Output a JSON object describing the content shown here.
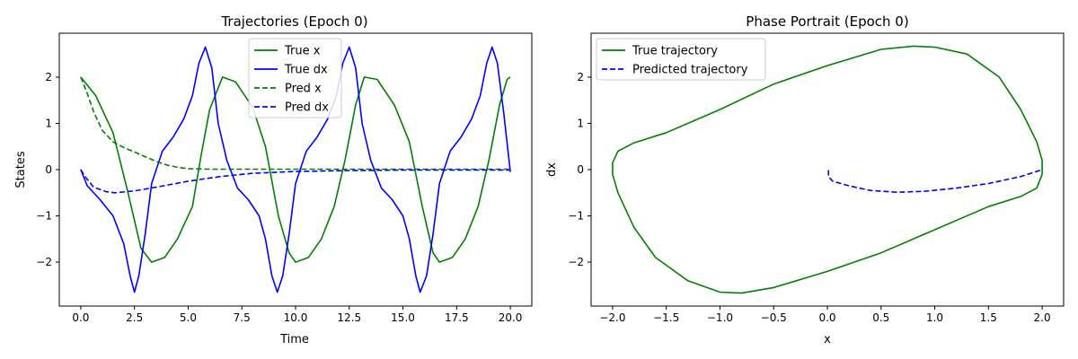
{
  "colors": {
    "true": "#008000",
    "pred": "#0000ff",
    "axis": "#000000",
    "legend_border": "#cccccc"
  },
  "chart_data": [
    {
      "type": "line",
      "title": "Trajectories (Epoch 0)",
      "xlabel": "Time",
      "ylabel": "States",
      "xlim": [
        -1.0,
        21.0
      ],
      "ylim": [
        -2.95,
        2.95
      ],
      "xticks": [
        0.0,
        2.5,
        5.0,
        7.5,
        10.0,
        12.5,
        15.0,
        17.5,
        20.0
      ],
      "xticklabels": [
        "0.0",
        "2.5",
        "5.0",
        "7.5",
        "10.0",
        "12.5",
        "15.0",
        "17.5",
        "20.0"
      ],
      "yticks": [
        -2,
        -1,
        0,
        1,
        2
      ],
      "yticklabels": [
        "−2",
        "−1",
        "0",
        "1",
        "2"
      ],
      "grid": false,
      "legend": "top-center",
      "series": [
        {
          "name": "True x",
          "style": "solid",
          "color_key": "true",
          "points": [
            [
              0,
              2.0
            ],
            [
              0.7,
              1.6
            ],
            [
              1.5,
              0.8
            ],
            [
              2.2,
              -0.5
            ],
            [
              2.8,
              -1.7
            ],
            [
              3.3,
              -2.0
            ],
            [
              3.9,
              -1.9
            ],
            [
              4.5,
              -1.5
            ],
            [
              5.2,
              -0.8
            ],
            [
              5.6,
              0.3
            ],
            [
              6.0,
              1.3
            ],
            [
              6.6,
              2.0
            ],
            [
              7.2,
              1.9
            ],
            [
              8.0,
              1.35
            ],
            [
              8.6,
              0.5
            ],
            [
              9.2,
              -1.0
            ],
            [
              9.7,
              -1.8
            ],
            [
              10.0,
              -2.0
            ],
            [
              10.6,
              -1.9
            ],
            [
              11.2,
              -1.5
            ],
            [
              11.8,
              -0.8
            ],
            [
              12.3,
              0.2
            ],
            [
              12.8,
              1.4
            ],
            [
              13.2,
              2.0
            ],
            [
              13.8,
              1.95
            ],
            [
              14.6,
              1.4
            ],
            [
              15.3,
              0.6
            ],
            [
              15.9,
              -0.8
            ],
            [
              16.4,
              -1.8
            ],
            [
              16.7,
              -2.0
            ],
            [
              17.3,
              -1.9
            ],
            [
              17.9,
              -1.5
            ],
            [
              18.5,
              -0.8
            ],
            [
              19.0,
              0.2
            ],
            [
              19.5,
              1.4
            ],
            [
              19.85,
              1.95
            ],
            [
              20.0,
              2.0
            ]
          ]
        },
        {
          "name": "True dx",
          "style": "solid",
          "color_key": "pred",
          "points": [
            [
              0,
              0.0
            ],
            [
              0.3,
              -0.35
            ],
            [
              0.9,
              -0.65
            ],
            [
              1.5,
              -1.0
            ],
            [
              2.0,
              -1.6
            ],
            [
              2.3,
              -2.3
            ],
            [
              2.5,
              -2.65
            ],
            [
              2.7,
              -2.3
            ],
            [
              3.0,
              -1.4
            ],
            [
              3.3,
              -0.3
            ],
            [
              3.8,
              0.4
            ],
            [
              4.3,
              0.7
            ],
            [
              4.8,
              1.1
            ],
            [
              5.2,
              1.6
            ],
            [
              5.5,
              2.3
            ],
            [
              5.8,
              2.65
            ],
            [
              6.1,
              2.2
            ],
            [
              6.4,
              1.0
            ],
            [
              6.8,
              0.2
            ],
            [
              7.3,
              -0.4
            ],
            [
              7.8,
              -0.65
            ],
            [
              8.3,
              -1.0
            ],
            [
              8.6,
              -1.5
            ],
            [
              8.9,
              -2.3
            ],
            [
              9.15,
              -2.65
            ],
            [
              9.4,
              -2.3
            ],
            [
              9.7,
              -1.4
            ],
            [
              10.0,
              -0.3
            ],
            [
              10.5,
              0.4
            ],
            [
              11.0,
              0.7
            ],
            [
              11.5,
              1.1
            ],
            [
              11.9,
              1.6
            ],
            [
              12.2,
              2.3
            ],
            [
              12.5,
              2.65
            ],
            [
              12.8,
              2.2
            ],
            [
              13.1,
              1.0
            ],
            [
              13.5,
              0.2
            ],
            [
              14.0,
              -0.4
            ],
            [
              14.5,
              -0.65
            ],
            [
              15.0,
              -1.0
            ],
            [
              15.3,
              -1.5
            ],
            [
              15.6,
              -2.3
            ],
            [
              15.8,
              -2.65
            ],
            [
              16.1,
              -2.3
            ],
            [
              16.4,
              -1.4
            ],
            [
              16.7,
              -0.3
            ],
            [
              17.2,
              0.4
            ],
            [
              17.7,
              0.7
            ],
            [
              18.2,
              1.1
            ],
            [
              18.6,
              1.6
            ],
            [
              18.9,
              2.3
            ],
            [
              19.15,
              2.65
            ],
            [
              19.4,
              2.3
            ],
            [
              19.7,
              1.2
            ],
            [
              20.0,
              -0.05
            ]
          ]
        },
        {
          "name": "Pred x",
          "style": "dashed",
          "color_key": "true",
          "points": [
            [
              0,
              2.0
            ],
            [
              0.3,
              1.65
            ],
            [
              0.6,
              1.25
            ],
            [
              1.0,
              0.85
            ],
            [
              1.5,
              0.6
            ],
            [
              2.0,
              0.48
            ],
            [
              2.5,
              0.38
            ],
            [
              3.0,
              0.28
            ],
            [
              3.5,
              0.18
            ],
            [
              4.0,
              0.1
            ],
            [
              4.5,
              0.05
            ],
            [
              5.0,
              0.02
            ],
            [
              6.0,
              0.01
            ],
            [
              8.0,
              0.01
            ],
            [
              10.0,
              0.01
            ],
            [
              14.0,
              0.01
            ],
            [
              20.0,
              0.01
            ]
          ]
        },
        {
          "name": "Pred dx",
          "style": "dashed",
          "color_key": "pred",
          "points": [
            [
              0,
              0.0
            ],
            [
              0.2,
              -0.15
            ],
            [
              0.6,
              -0.38
            ],
            [
              1.2,
              -0.48
            ],
            [
              1.6,
              -0.5
            ],
            [
              2.5,
              -0.46
            ],
            [
              3.5,
              -0.38
            ],
            [
              5.0,
              -0.25
            ],
            [
              6.5,
              -0.15
            ],
            [
              8.0,
              -0.08
            ],
            [
              10.0,
              -0.04
            ],
            [
              12.5,
              -0.02
            ],
            [
              15.0,
              -0.01
            ],
            [
              20.0,
              -0.01
            ]
          ]
        }
      ]
    },
    {
      "type": "line",
      "title": "Phase Portrait (Epoch 0)",
      "xlabel": "x",
      "ylabel": "dx",
      "xlim": [
        -2.2,
        2.2
      ],
      "ylim": [
        -2.95,
        2.95
      ],
      "xticks": [
        -2.0,
        -1.5,
        -1.0,
        -0.5,
        0.0,
        0.5,
        1.0,
        1.5,
        2.0
      ],
      "xticklabels": [
        "−2.0",
        "−1.5",
        "−1.0",
        "−0.5",
        "0.0",
        "0.5",
        "1.0",
        "1.5",
        "2.0"
      ],
      "yticks": [
        -2,
        -1,
        0,
        1,
        2
      ],
      "yticklabels": [
        "−2",
        "−1",
        "0",
        "1",
        "2"
      ],
      "grid": false,
      "legend": "top-left",
      "series": [
        {
          "name": "True trajectory",
          "style": "solid",
          "color_key": "true",
          "points": [
            [
              2.0,
              0.0
            ],
            [
              2.0,
              0.2
            ],
            [
              1.95,
              0.6
            ],
            [
              1.8,
              1.3
            ],
            [
              1.6,
              2.0
            ],
            [
              1.3,
              2.5
            ],
            [
              1.0,
              2.65
            ],
            [
              0.8,
              2.67
            ],
            [
              0.5,
              2.6
            ],
            [
              0.0,
              2.25
            ],
            [
              -0.5,
              1.85
            ],
            [
              -1.0,
              1.3
            ],
            [
              -1.5,
              0.8
            ],
            [
              -1.8,
              0.58
            ],
            [
              -1.95,
              0.4
            ],
            [
              -2.0,
              0.15
            ],
            [
              -2.0,
              -0.1
            ],
            [
              -1.95,
              -0.5
            ],
            [
              -1.8,
              -1.25
            ],
            [
              -1.6,
              -1.9
            ],
            [
              -1.3,
              -2.4
            ],
            [
              -1.0,
              -2.65
            ],
            [
              -0.8,
              -2.67
            ],
            [
              -0.5,
              -2.55
            ],
            [
              0.0,
              -2.2
            ],
            [
              0.5,
              -1.8
            ],
            [
              1.0,
              -1.3
            ],
            [
              1.5,
              -0.8
            ],
            [
              1.8,
              -0.58
            ],
            [
              1.95,
              -0.4
            ],
            [
              2.0,
              -0.1
            ],
            [
              2.0,
              0.0
            ]
          ]
        },
        {
          "name": "Predicted trajectory",
          "style": "dashed",
          "color_key": "pred",
          "points": [
            [
              0.01,
              -0.01
            ],
            [
              0.01,
              -0.15
            ],
            [
              0.05,
              -0.25
            ],
            [
              0.2,
              -0.35
            ],
            [
              0.4,
              -0.45
            ],
            [
              0.65,
              -0.49
            ],
            [
              0.9,
              -0.47
            ],
            [
              1.2,
              -0.4
            ],
            [
              1.5,
              -0.3
            ],
            [
              1.8,
              -0.15
            ],
            [
              2.0,
              0.0
            ]
          ]
        }
      ]
    }
  ]
}
